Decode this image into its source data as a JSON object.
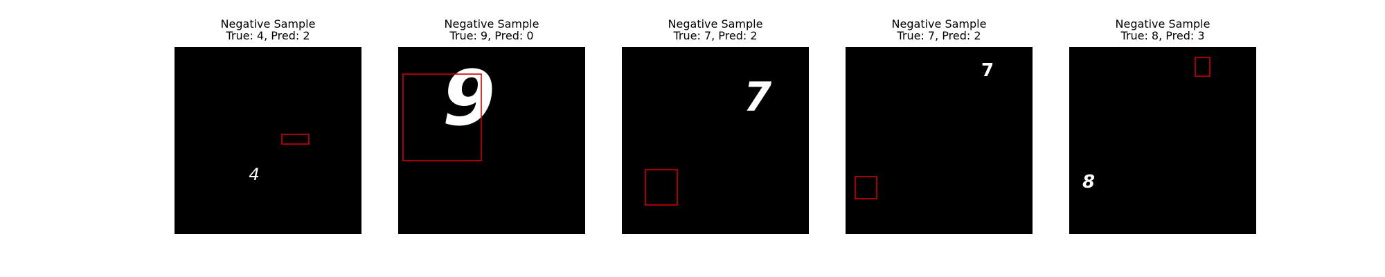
{
  "figure": {
    "panels": [
      {
        "title": "Negative Sample",
        "subtitle": "True: 4, Pred: 2",
        "digit": "4"
      },
      {
        "title": "Negative Sample",
        "subtitle": "True: 9, Pred: 0",
        "digit": "9"
      },
      {
        "title": "Negative Sample",
        "subtitle": "True: 7, Pred: 2",
        "digit": "7"
      },
      {
        "title": "Negative Sample",
        "subtitle": "True: 7, Pred: 2",
        "digit": "7"
      },
      {
        "title": "Negative Sample",
        "subtitle": "True: 8, Pred: 3",
        "digit": "8"
      }
    ]
  },
  "colors": {
    "background": "#000000",
    "box": "#d00000",
    "digit": "#ffffff"
  }
}
